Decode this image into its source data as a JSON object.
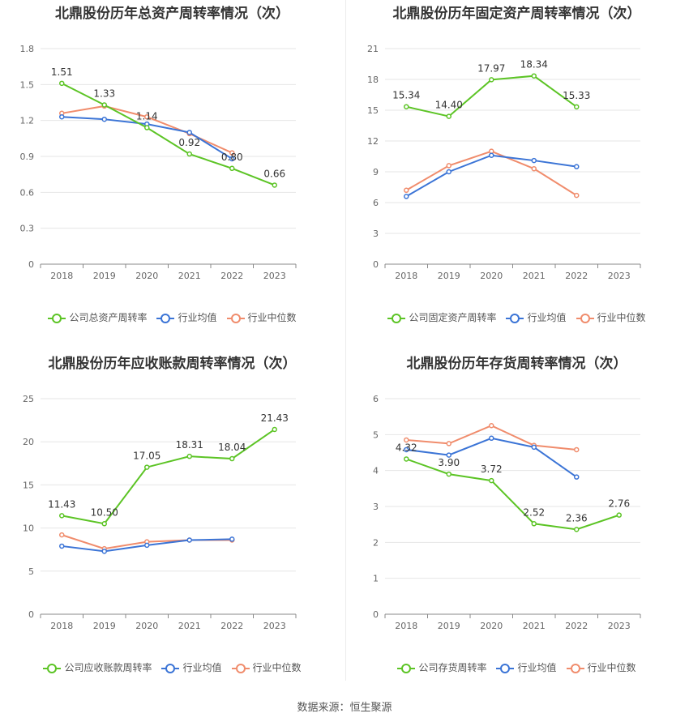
{
  "source_text": "数据来源：恒生聚源",
  "colors": {
    "company": "#5cc425",
    "avg": "#3b74d6",
    "median": "#f08c6c",
    "grid": "#e6e6e6",
    "axis": "#888888"
  },
  "chart_data": [
    {
      "type": "line",
      "title": "北鼎股份历年总资产周转率情况（次）",
      "x": [
        "2018",
        "2019",
        "2020",
        "2021",
        "2022",
        "2023"
      ],
      "ylim": [
        0,
        1.8
      ],
      "yticks": [
        "0",
        "0.3",
        "0.6",
        "0.9",
        "1.2",
        "1.5",
        "1.8"
      ],
      "series": [
        {
          "name": "公司总资产周转率",
          "values": [
            1.51,
            1.33,
            1.14,
            0.92,
            0.8,
            0.66
          ],
          "labels": [
            "1.51",
            "1.33",
            "1.14",
            "0.92",
            "0.80",
            "0.66"
          ]
        },
        {
          "name": "行业均值",
          "values": [
            1.23,
            1.21,
            1.17,
            1.1,
            0.88,
            null
          ]
        },
        {
          "name": "行业中位数",
          "values": [
            1.26,
            1.32,
            1.23,
            1.09,
            0.93,
            null
          ]
        }
      ]
    },
    {
      "type": "line",
      "title": "北鼎股份历年固定资产周转率情况（次）",
      "x": [
        "2018",
        "2019",
        "2020",
        "2021",
        "2022",
        "2023"
      ],
      "ylim": [
        0,
        21
      ],
      "yticks": [
        "0",
        "3",
        "6",
        "9",
        "12",
        "15",
        "18",
        "21"
      ],
      "series": [
        {
          "name": "公司固定资产周转率",
          "values": [
            15.34,
            14.4,
            17.97,
            18.34,
            15.33,
            null
          ],
          "labels": [
            "15.34",
            "14.40",
            "17.97",
            "18.34",
            "15.33",
            ""
          ]
        },
        {
          "name": "行业均值",
          "values": [
            6.6,
            9.0,
            10.6,
            10.1,
            9.5,
            null
          ]
        },
        {
          "name": "行业中位数",
          "values": [
            7.2,
            9.6,
            11.0,
            9.3,
            6.7,
            null
          ]
        }
      ]
    },
    {
      "type": "line",
      "title": "北鼎股份历年应收账款周转率情况（次）",
      "x": [
        "2018",
        "2019",
        "2020",
        "2021",
        "2022",
        "2023"
      ],
      "ylim": [
        0,
        25
      ],
      "yticks": [
        "0",
        "5",
        "10",
        "15",
        "20",
        "25"
      ],
      "series": [
        {
          "name": "公司应收账款周转率",
          "values": [
            11.43,
            10.5,
            17.05,
            18.31,
            18.04,
            21.43
          ],
          "labels": [
            "11.43",
            "10.50",
            "17.05",
            "18.31",
            "18.04",
            "21.43"
          ]
        },
        {
          "name": "行业均值",
          "values": [
            7.9,
            7.3,
            8.0,
            8.6,
            8.7,
            null
          ]
        },
        {
          "name": "行业中位数",
          "values": [
            9.2,
            7.6,
            8.4,
            8.6,
            8.6,
            null
          ]
        }
      ]
    },
    {
      "type": "line",
      "title": "北鼎股份历年存货周转率情况（次）",
      "x": [
        "2018",
        "2019",
        "2020",
        "2021",
        "2022",
        "2023"
      ],
      "ylim": [
        0,
        6
      ],
      "yticks": [
        "0",
        "1",
        "2",
        "3",
        "4",
        "5",
        "6"
      ],
      "series": [
        {
          "name": "公司存货周转率",
          "values": [
            4.32,
            3.9,
            3.72,
            2.52,
            2.36,
            2.76
          ],
          "labels": [
            "4.32",
            "3.90",
            "3.72",
            "2.52",
            "2.36",
            "2.76"
          ]
        },
        {
          "name": "行业均值",
          "values": [
            4.58,
            4.43,
            4.9,
            4.65,
            3.82,
            null
          ]
        },
        {
          "name": "行业中位数",
          "values": [
            4.85,
            4.75,
            5.25,
            4.7,
            4.58,
            null
          ]
        }
      ]
    }
  ]
}
